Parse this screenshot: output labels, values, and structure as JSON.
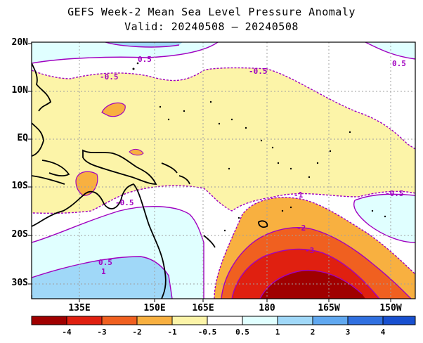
{
  "title": {
    "line1": "GEFS Week-2 Mean Sea Level Pressure Anomaly",
    "line2": "Valid: 20240508 – 20240508"
  },
  "lat_labels": [
    "20N",
    "10N",
    "EQ",
    "10S",
    "20S",
    "30S"
  ],
  "lon_labels": [
    "135E",
    "150E",
    "165E",
    "180",
    "165W",
    "150W"
  ],
  "contour_labels": {
    "minus_half_a": "-0.5",
    "minus_half_b": "-0.5",
    "minus_half_c": "-0.5",
    "minus_half_d": "-0.5",
    "minus_half_e": "-0.5",
    "plus_half_a": "0.5",
    "plus_half_b": "0.5",
    "plus_one": "1",
    "minus_one": "-1",
    "minus_two": "-2",
    "minus_three": "-3"
  },
  "colorbar": {
    "labels": [
      "-4",
      "-3",
      "-2",
      "-1",
      "-0.5",
      "0.5",
      "1",
      "2",
      "3",
      "4"
    ],
    "colors": [
      "#a00000",
      "#e02010",
      "#f06020",
      "#f8b040",
      "#fcf4a8",
      "#ffffff",
      "#e0ffff",
      "#a0d8f8",
      "#60a8f0",
      "#3070e0",
      "#1850d0"
    ]
  },
  "colors": {
    "contour": "#a000c0",
    "land": "#000000"
  }
}
